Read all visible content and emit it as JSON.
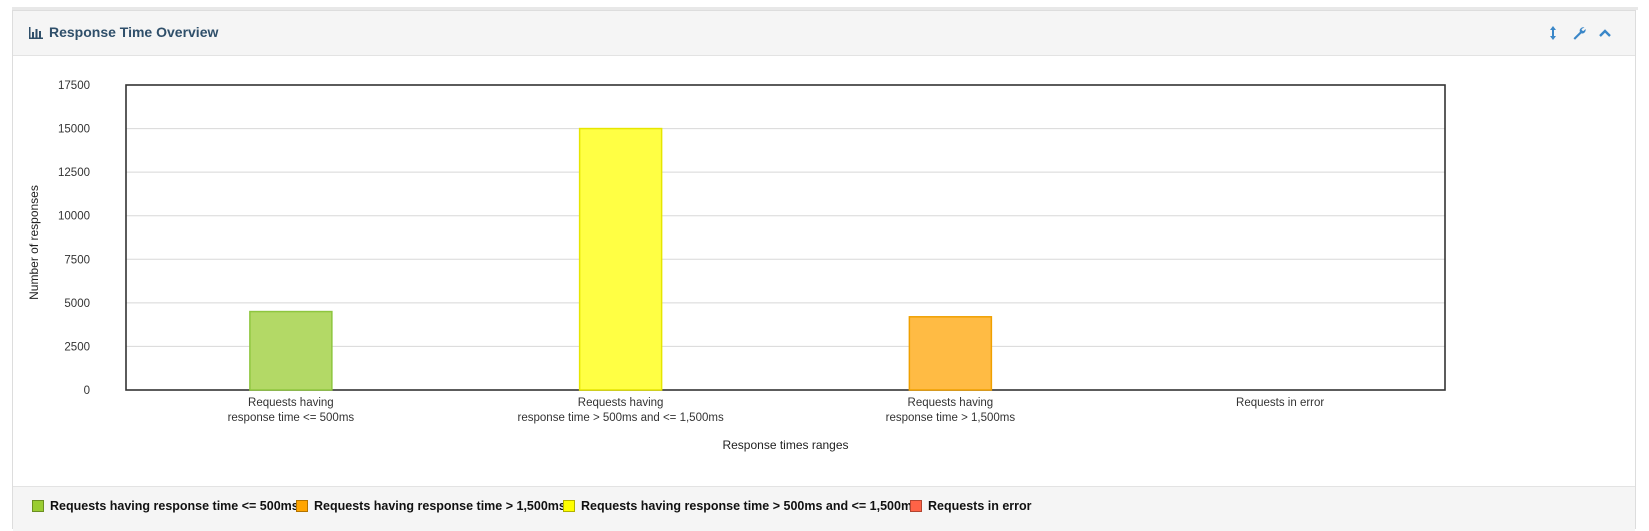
{
  "panel": {
    "title": "Response Time Overview",
    "title_icon": "bar-chart-icon",
    "tools": [
      {
        "name": "expand-vertical-icon",
        "label": "↕"
      },
      {
        "name": "wrench-icon",
        "label": "wrench"
      },
      {
        "name": "chevron-up-icon",
        "label": "collapse"
      }
    ],
    "accent_color": "#2f4f6a",
    "tool_color": "#3a87c8"
  },
  "chart_data": {
    "type": "bar",
    "title": "Response Time Overview",
    "xlabel": "Response times ranges",
    "ylabel": "Number of responses",
    "ylim": [
      0,
      17500
    ],
    "yticks": [
      0,
      2500,
      5000,
      7500,
      10000,
      12500,
      15000,
      17500
    ],
    "ytick_labels": [
      "0",
      "2500",
      "5000",
      "7500",
      "10000",
      "12500",
      "15000",
      "17500"
    ],
    "grid": true,
    "categories": [
      {
        "lines": [
          "Requests having",
          "response time <= 500ms"
        ]
      },
      {
        "lines": [
          "Requests having",
          "response time > 500ms and <= 1,500ms"
        ]
      },
      {
        "lines": [
          "Requests having",
          "response time > 1,500ms"
        ]
      },
      {
        "lines": [
          "Requests in error"
        ]
      }
    ],
    "values": [
      4500,
      15000,
      4200,
      0
    ],
    "bar_colors": [
      "#b3d966",
      "#ffff44",
      "#ffbb44",
      "#ff6644"
    ],
    "bar_borders": [
      "#8ec63f",
      "#e6e600",
      "#f0a000",
      "#e04020"
    ],
    "legend_position": "bottom",
    "legend": [
      {
        "label": "Requests having response time <= 500ms",
        "color": "#9acd32"
      },
      {
        "label": "Requests having response time > 1,500ms",
        "color": "#ffa500"
      },
      {
        "label": "Requests having response time > 500ms and <= 1,500ms",
        "color": "#ffff00"
      },
      {
        "label": "Requests in error",
        "color": "#ff6347"
      }
    ]
  }
}
